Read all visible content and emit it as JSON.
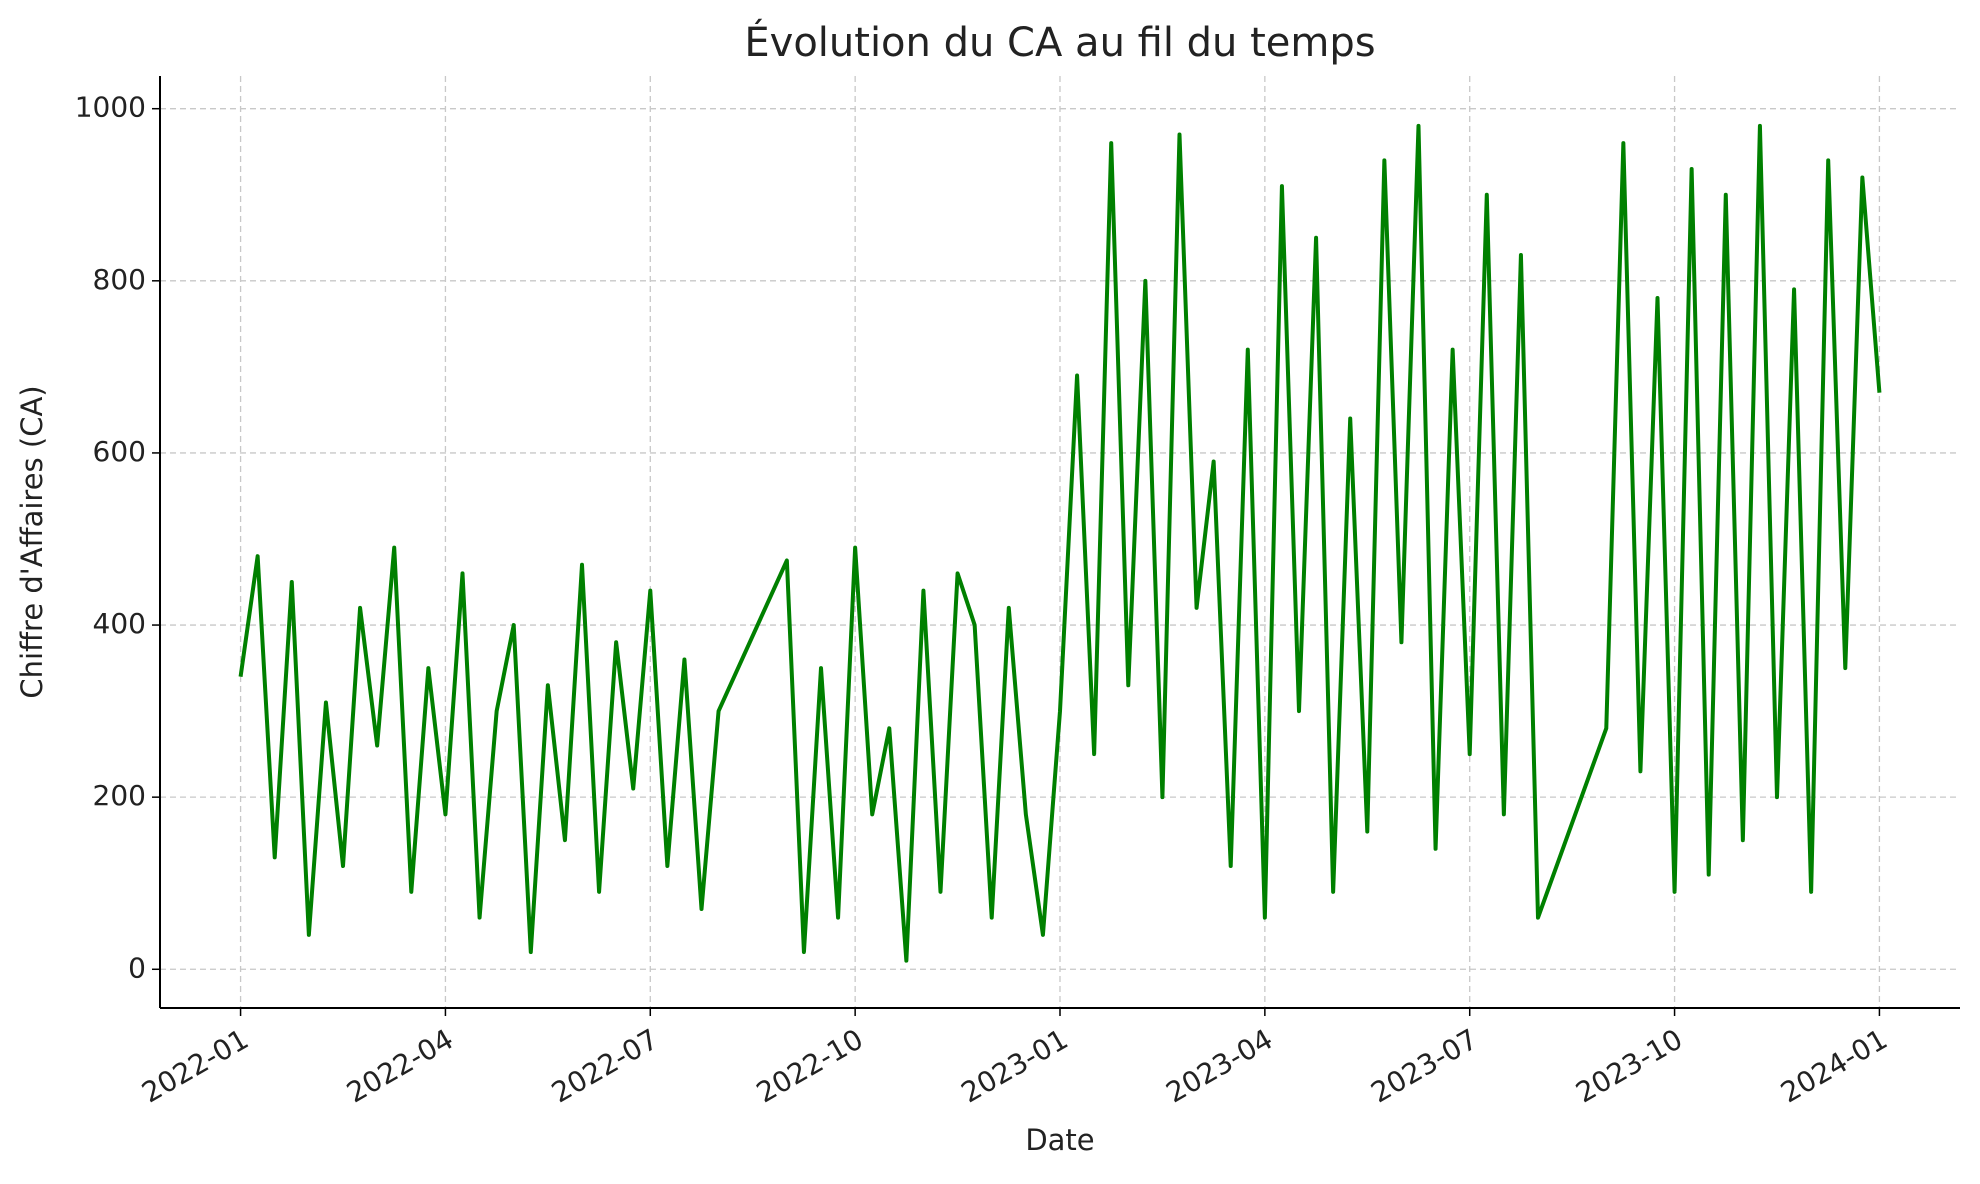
{
  "chart_data": {
    "type": "line",
    "title": "Évolution du CA au fil du temps",
    "x_label": "Date",
    "y_label": "Chiffre d'Affaires (CA)",
    "x": [
      0,
      0.25,
      0.5,
      0.75,
      1,
      1.25,
      1.5,
      1.75,
      2,
      2.25,
      2.5,
      2.75,
      3,
      3.25,
      3.5,
      3.75,
      4,
      4.25,
      4.5,
      4.75,
      5,
      5.25,
      5.5,
      5.75,
      6,
      6.25,
      6.5,
      6.75,
      7,
      8,
      8.25,
      8.5,
      8.75,
      9,
      9.25,
      9.5,
      9.75,
      10,
      10.25,
      10.5,
      10.75,
      11,
      11.25,
      11.5,
      11.75,
      12,
      12.25,
      12.5,
      12.75,
      13,
      13.25,
      13.5,
      13.75,
      14,
      14.25,
      14.5,
      14.75,
      15,
      15.25,
      15.5,
      15.75,
      16,
      16.25,
      16.5,
      16.75,
      17,
      17.25,
      17.5,
      17.75,
      18,
      18.25,
      18.5,
      18.75,
      19,
      20,
      20.25,
      20.5,
      20.75,
      21,
      21.25,
      21.5,
      21.75,
      22,
      22.25,
      22.5,
      22.75,
      23,
      23.25,
      23.5,
      23.75,
      24
    ],
    "series": [
      {
        "name": "CA",
        "color": "#008000",
        "values": [
          340,
          480,
          130,
          450,
          40,
          310,
          120,
          420,
          260,
          490,
          90,
          350,
          180,
          460,
          60,
          300,
          400,
          20,
          330,
          150,
          470,
          90,
          380,
          210,
          440,
          120,
          360,
          70,
          300,
          475,
          20,
          350,
          60,
          490,
          180,
          280,
          10,
          440,
          90,
          460,
          400,
          60,
          420,
          180,
          40,
          300,
          690,
          250,
          960,
          330,
          800,
          200,
          970,
          420,
          590,
          120,
          720,
          60,
          910,
          300,
          850,
          90,
          640,
          160,
          940,
          380,
          980,
          140,
          720,
          250,
          900,
          180,
          830,
          60,
          280,
          960,
          230,
          780,
          90,
          930,
          110,
          900,
          150,
          980,
          200,
          790,
          90,
          940,
          350,
          920,
          670
        ]
      }
    ],
    "xlim": [
      -1.18,
      25.18
    ],
    "ylim": [
      -45,
      1038
    ],
    "xticks": [
      {
        "value": 0,
        "label": "2022-01"
      },
      {
        "value": 3,
        "label": "2022-04"
      },
      {
        "value": 6,
        "label": "2022-07"
      },
      {
        "value": 9,
        "label": "2022-10"
      },
      {
        "value": 12,
        "label": "2023-01"
      },
      {
        "value": 15,
        "label": "2023-04"
      },
      {
        "value": 18,
        "label": "2023-07"
      },
      {
        "value": 21,
        "label": "2023-10"
      },
      {
        "value": 24,
        "label": "2024-01"
      }
    ],
    "yticks": [
      0,
      200,
      400,
      600,
      800,
      1000
    ],
    "grid": true
  }
}
